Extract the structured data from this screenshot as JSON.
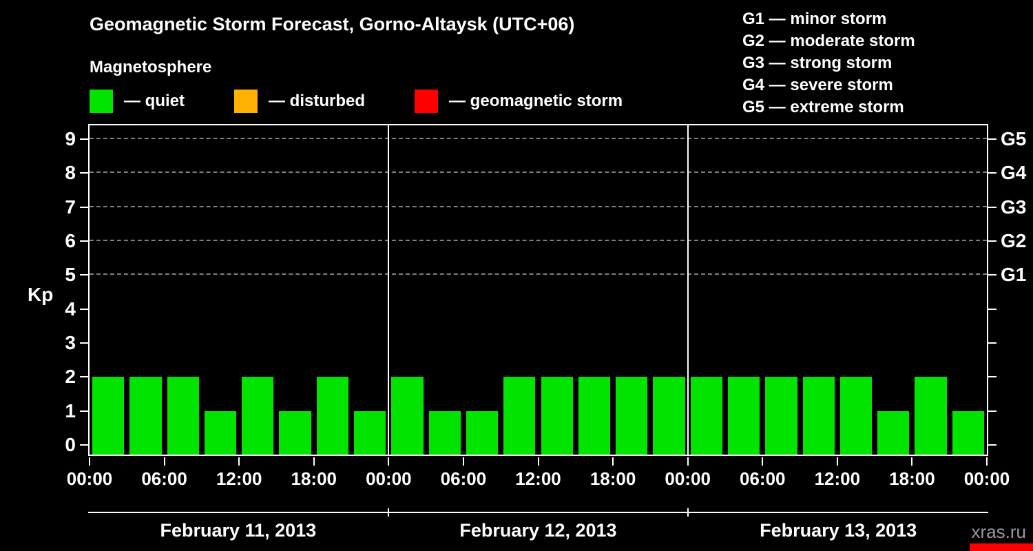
{
  "header": {
    "title": "Geomagnetic Storm Forecast, Gorno-Altaysk (UTC+06)",
    "subtitle": "Magnetosphere"
  },
  "legend": {
    "items": [
      {
        "label": "— quiet",
        "color": "#00e400"
      },
      {
        "label": "— disturbed",
        "color": "#ffb000"
      },
      {
        "label": "— geomagnetic storm",
        "color": "#ff0000"
      }
    ]
  },
  "g_legend": [
    "G1 — minor storm",
    "G2 — moderate storm",
    "G3 — strong storm",
    "G4 — severe storm",
    "G5 — extreme storm"
  ],
  "watermark": "xras.ru",
  "chart_data": {
    "type": "bar",
    "title": "Geomagnetic Storm Forecast, Gorno-Altaysk (UTC+06)",
    "ylabel": "Kp",
    "ylim": [
      0,
      9
    ],
    "yticks": [
      0,
      1,
      2,
      3,
      4,
      5,
      6,
      7,
      8,
      9
    ],
    "gridlines_kp": [
      5,
      6,
      7,
      8,
      9
    ],
    "right_axis_labels": [
      {
        "label": "G1",
        "kp": 5
      },
      {
        "label": "G2",
        "kp": 6
      },
      {
        "label": "G3",
        "kp": 7
      },
      {
        "label": "G4",
        "kp": 8
      },
      {
        "label": "G5",
        "kp": 9
      }
    ],
    "bar_color": "#00e400",
    "bar_interval_hours": 3,
    "x_tick_labels": [
      "00:00",
      "06:00",
      "12:00",
      "18:00",
      "00:00",
      "06:00",
      "12:00",
      "18:00",
      "00:00",
      "06:00",
      "12:00",
      "18:00",
      "00:00"
    ],
    "days": [
      {
        "date": "February 11, 2013",
        "values": [
          2,
          2,
          2,
          1,
          2,
          1,
          2,
          1
        ]
      },
      {
        "date": "February 12, 2013",
        "values": [
          2,
          1,
          1,
          2,
          2,
          2,
          2,
          2
        ]
      },
      {
        "date": "February 13, 2013",
        "values": [
          2,
          2,
          2,
          2,
          2,
          1,
          2,
          1
        ]
      }
    ],
    "status_colors": {
      "quiet": "#00e400",
      "disturbed": "#ffb000",
      "storm": "#ff0000"
    },
    "grid": "dashed horizontal at Kp 5-9",
    "legend_position": "top"
  }
}
